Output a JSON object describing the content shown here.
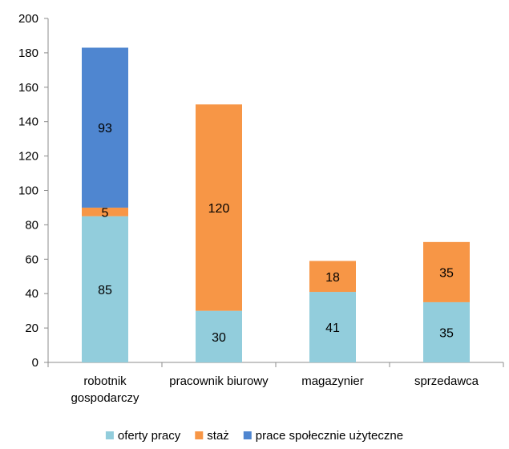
{
  "chart_data": {
    "type": "bar",
    "stacked": true,
    "categories": [
      [
        "robotnik",
        "gospodarczy"
      ],
      [
        "pracownik biurowy"
      ],
      [
        "magazynier"
      ],
      [
        "sprzedawca"
      ]
    ],
    "series": [
      {
        "name": "oferty pracy",
        "values": [
          85,
          30,
          41,
          35
        ],
        "color": "#92CDDC"
      },
      {
        "name": "staż",
        "values": [
          5,
          120,
          18,
          35
        ],
        "color": "#F79646"
      },
      {
        "name": "prace społecznie użyteczne",
        "values": [
          93,
          0,
          0,
          0
        ],
        "color": "#4F86D0"
      }
    ],
    "y_ticks": [
      "0",
      "20",
      "40",
      "60",
      "80",
      "100",
      "120",
      "140",
      "160",
      "180",
      "200"
    ],
    "ylim": [
      0,
      200
    ],
    "grid": false,
    "legend_position": "bottom"
  }
}
